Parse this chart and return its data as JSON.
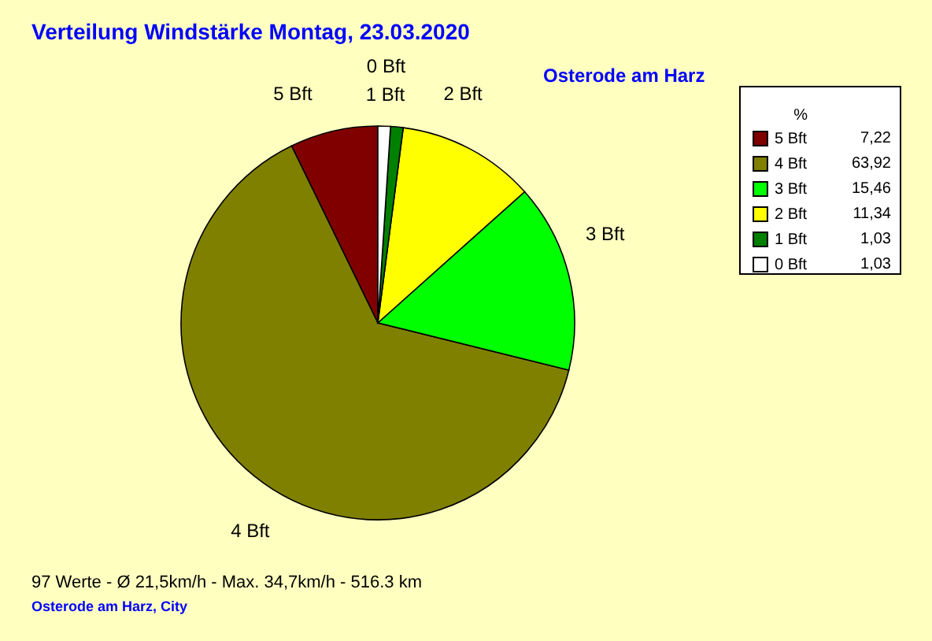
{
  "chart_data": {
    "type": "pie",
    "title": "Verteilung Windstärke  Montag, 23.03.2020",
    "subtitle": "Osterode am Harz",
    "categories": [
      "5 Bft",
      "4 Bft",
      "3 Bft",
      "2 Bft",
      "1 Bft",
      "0 Bft"
    ],
    "values": [
      7.22,
      63.92,
      15.46,
      11.34,
      1.03,
      1.03
    ],
    "value_labels": [
      "7,22",
      "63,92",
      "15,46",
      "11,34",
      "1,03",
      "1,03"
    ],
    "colors": [
      "#800000",
      "#808000",
      "#00ff00",
      "#ffff00",
      "#008000",
      "#ffffff"
    ],
    "legend": "top right",
    "legend_title": "%",
    "annotations": [
      "97 Werte  -  Ø 21,5km/h  -  Max. 34,7km/h  -  516.3 km",
      "Osterode am Harz, City"
    ]
  }
}
